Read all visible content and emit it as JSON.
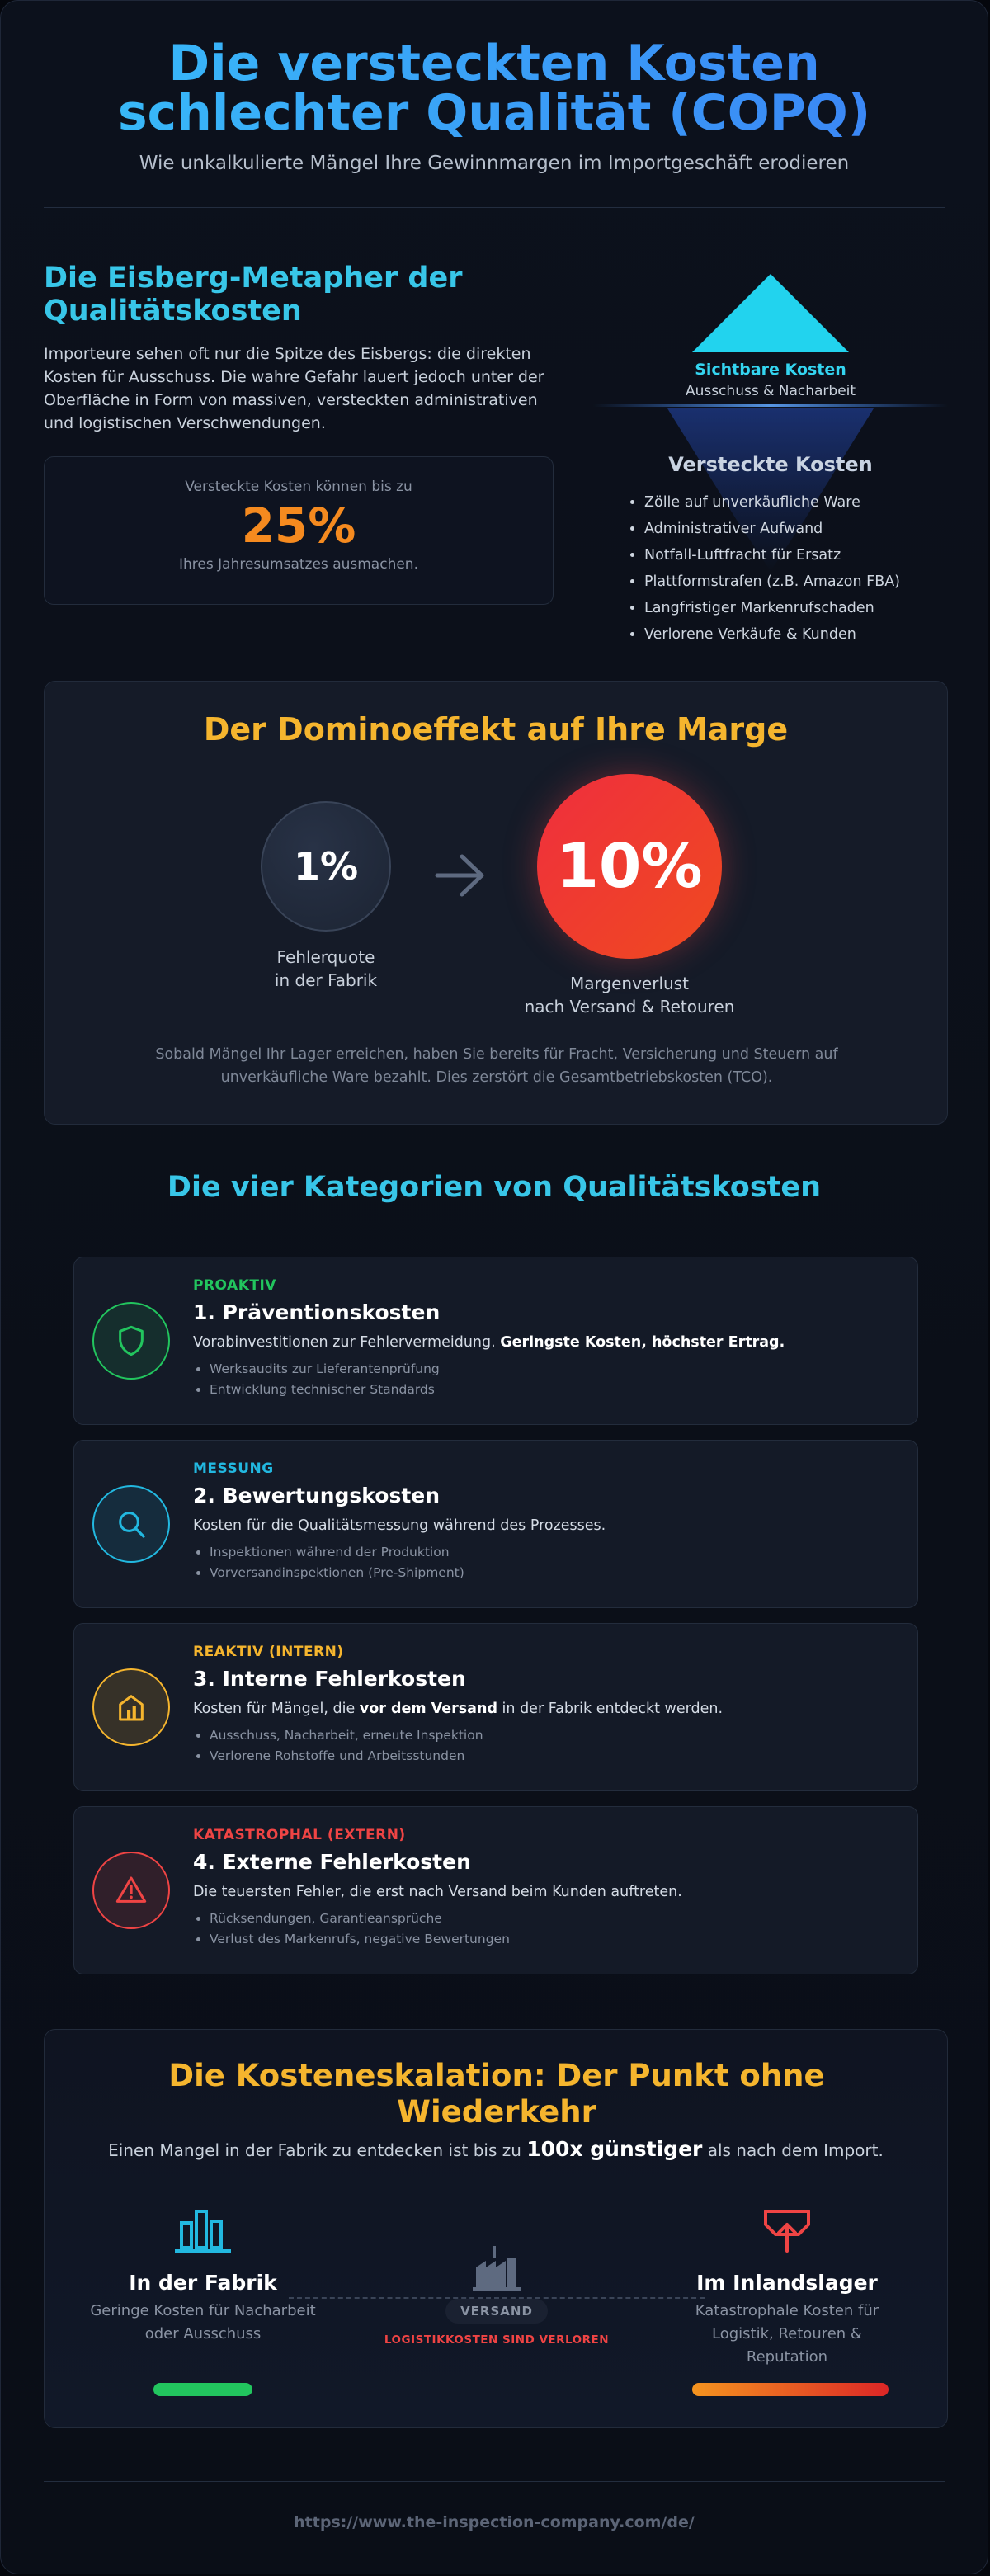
{
  "header": {
    "title": "Die versteckten Kosten schlechter Qualität (COPQ)",
    "subtitle": "Wie unkalkulierte Mängel Ihre Gewinnmargen im Importgeschäft erodieren"
  },
  "iceberg": {
    "heading": "Die Eisberg-Metapher der Qualitätskosten",
    "text": "Importeure sehen oft nur die Spitze des Eisbergs: die direkten Kosten für Ausschuss. Die wahre Gefahr lauert jedoch unter der Oberfläche in Form von massiven, versteckten administrativen und logistischen Verschwendungen.",
    "stat": {
      "pre": "Versteckte Kosten können bis zu",
      "value": "25%",
      "post": "Ihres Jahresumsatzes ausmachen."
    },
    "visible_label": "Sichtbare Kosten",
    "visible_sub": "Ausschuss & Nacharbeit",
    "hidden_title": "Versteckte Kosten",
    "hidden_items": [
      "Zölle auf unverkäufliche Ware",
      "Administrativer Aufwand",
      "Notfall-Luftfracht für Ersatz",
      "Plattformstrafen (z.B. Amazon FBA)",
      "Langfristiger Markenrufschaden",
      "Verlorene Verkäufe & Kunden"
    ]
  },
  "domino": {
    "title": "Der Dominoeffekt auf Ihre Marge",
    "left_value": "1%",
    "left_label_1": "Fehlerquote",
    "left_label_2": "in der Fabrik",
    "right_value": "10%",
    "right_label_1": "Margenverlust",
    "right_label_2": "nach Versand & Retouren",
    "note": "Sobald Mängel Ihr Lager erreichen, haben Sie bereits für Fracht, Versicherung und Steuern auf unverkäufliche Ware bezahlt. Dies zerstört die Gesamtbetriebskosten (TCO)."
  },
  "categories": {
    "title": "Die vier Kategorien von Qualitätskosten",
    "items": [
      {
        "tag": "PROAKTIV",
        "name": "1. Präventionskosten",
        "desc_a": "Vorabinvestitionen zur Fehlervermeidung. ",
        "desc_b": "Geringste Kosten, höchster Ertrag.",
        "desc_c": "",
        "bullets": [
          "Werksaudits zur Lieferantenprüfung",
          "Entwicklung technischer Standards"
        ],
        "color": "#22c55e",
        "icon": "shield-icon"
      },
      {
        "tag": "MESSUNG",
        "name": "2. Bewertungskosten",
        "desc_a": "Kosten für die Qualitätsmessung während des Prozesses.",
        "desc_b": "",
        "desc_c": "",
        "bullets": [
          "Inspektionen während der Produktion",
          "Vorversandinspektionen (Pre-Shipment)"
        ],
        "color": "#22b8e0",
        "icon": "search-icon"
      },
      {
        "tag": "REAKTIV (INTERN)",
        "name": "3. Interne Fehlerkosten",
        "desc_a": "Kosten für Mängel, die ",
        "desc_b": "vor dem Versand",
        "desc_c": " in der Fabrik entdeckt werden.",
        "bullets": [
          "Ausschuss, Nacharbeit, erneute Inspektion",
          "Verlorene Rohstoffe und Arbeitsstunden"
        ],
        "color": "#f5b52e",
        "icon": "factory-icon"
      },
      {
        "tag": "KATASTROPHAL (EXTERN)",
        "name": "4. Externe Fehlerkosten",
        "desc_a": "Die teuersten Fehler, die erst nach Versand beim Kunden auftreten.",
        "desc_b": "",
        "desc_c": "",
        "bullets": [
          "Rücksendungen, Garantieansprüche",
          "Verlust des Markenrufs, negative Bewertungen"
        ],
        "color": "#ef4444",
        "icon": "warning-icon"
      }
    ]
  },
  "escalation": {
    "title": "Die Kosteneskalation: Der Punkt ohne Wiederkehr",
    "sub_a": "Einen Mangel in der Fabrik zu entdecken ist bis zu ",
    "sub_b": "100x günstiger",
    "sub_c": " als nach dem Import.",
    "left_name": "In der Fabrik",
    "left_desc": "Geringe Kosten für Nacharbeit oder Ausschuss",
    "middle_badge": "VERSAND",
    "middle_note": "LOGISTIKKOSTEN SIND VERLOREN",
    "right_name": "Im Inlandslager",
    "right_desc": "Katastrophale Kosten für Logistik, Retouren & Reputation"
  },
  "footer": {
    "url": "https://www.the-inspection-company.com/de/"
  }
}
